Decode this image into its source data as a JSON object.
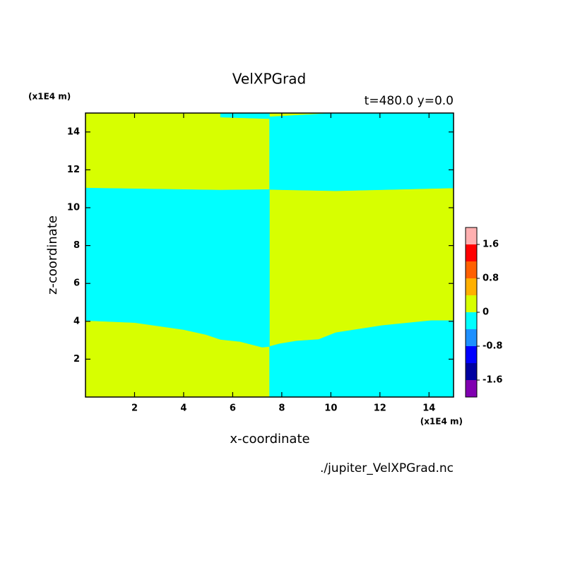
{
  "chart_data": {
    "type": "contour",
    "title": "VelXPGrad",
    "subtitle": "t=480.0 y=0.0",
    "x_label": "x-coordinate",
    "y_label": "z-coordinate",
    "x_unit": "(x1E4 m)",
    "y_unit": "(x1E4 m)",
    "source": "./jupiter_VelXPGrad.nc",
    "xlim": [
      0,
      15
    ],
    "ylim": [
      0,
      15
    ],
    "xticks": [
      2,
      4,
      6,
      8,
      10,
      12,
      14
    ],
    "yticks": [
      2,
      4,
      6,
      8,
      10,
      12,
      14
    ],
    "background_color": "#d7ff00",
    "regions": [
      {
        "color": "#00ffff",
        "x": [
          0,
          2,
          4,
          4.9,
          5.5,
          6.3,
          7.2,
          7.5,
          7.5,
          5.5,
          0
        ],
        "y": [
          4.04,
          3.93,
          3.56,
          3.3,
          3.04,
          2.93,
          2.63,
          2.67,
          10.96,
          10.93,
          11.04
        ]
      },
      {
        "color": "#00ffff",
        "x": [
          5.5,
          7.5,
          7.5,
          5.5
        ],
        "y": [
          15,
          15,
          14.7,
          14.78
        ]
      },
      {
        "color": "#00ffff",
        "x": [
          7.5,
          10.2,
          15,
          15,
          10.2,
          7.5
        ],
        "y": [
          10.96,
          10.89,
          11.04,
          15,
          15,
          14.8
        ]
      },
      {
        "color": "#00ffff",
        "x": [
          7.5,
          15,
          15,
          14.1,
          12.1,
          10.2,
          9.5,
          8.6,
          7.9,
          7.5
        ],
        "y": [
          0,
          0,
          4.04,
          4.04,
          3.78,
          3.4,
          3.04,
          2.96,
          2.81,
          2.67
        ]
      }
    ],
    "colorbar": {
      "levels": [
        -2,
        -1.6,
        -1.2,
        -0.8,
        -0.4,
        0,
        0.4,
        0.8,
        1.2,
        1.6,
        2
      ],
      "colors": [
        "#8000b0",
        "#0000a0",
        "#0000ff",
        "#1e90ff",
        "#00ffff",
        "#d7ff00",
        "#ffb000",
        "#ff6000",
        "#ff0000",
        "#ffb0b0"
      ],
      "ticks": [
        -1.6,
        -0.8,
        0,
        0.8,
        1.6
      ]
    }
  }
}
